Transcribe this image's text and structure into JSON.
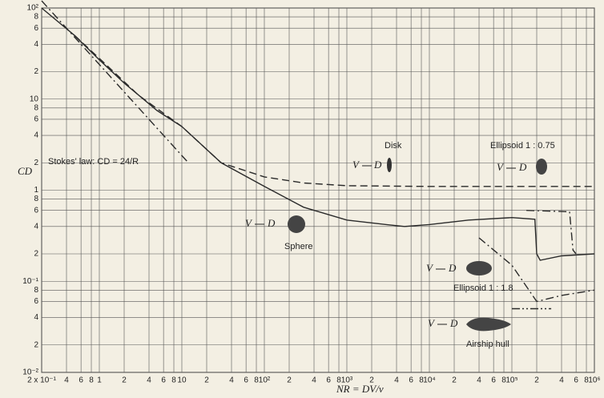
{
  "chart_data": {
    "type": "line",
    "x_label": "NR = DV/ν",
    "y_label": "CD",
    "log_x": true,
    "log_y": true,
    "grid": true,
    "xlim": [
      0.2,
      1000000
    ],
    "ylim": [
      0.01,
      100
    ],
    "xticks": [
      {
        "value": 0.2,
        "label": "2 x 10⁻¹"
      },
      {
        "value": 0.4,
        "label": "4"
      },
      {
        "value": 0.6,
        "label": "6"
      },
      {
        "value": 0.8,
        "label": "8"
      },
      1,
      2,
      4,
      6,
      8,
      10,
      {
        "value": 20,
        "label": "2"
      },
      {
        "value": 40,
        "label": "4"
      },
      {
        "value": 60,
        "label": "6"
      },
      {
        "value": 80,
        "label": "8"
      },
      {
        "value": 100,
        "label": "10²"
      },
      {
        "value": 200,
        "label": "2"
      },
      {
        "value": 400,
        "label": "4"
      },
      {
        "value": 600,
        "label": "6"
      },
      {
        "value": 800,
        "label": "8"
      },
      {
        "value": 1000,
        "label": "10³"
      },
      {
        "value": 2000,
        "label": "2"
      },
      {
        "value": 4000,
        "label": "4"
      },
      {
        "value": 6000,
        "label": "6"
      },
      {
        "value": 8000,
        "label": "8"
      },
      {
        "value": 10000,
        "label": "10⁴"
      },
      {
        "value": 20000,
        "label": "2"
      },
      {
        "value": 40000,
        "label": "4"
      },
      {
        "value": 60000,
        "label": "6"
      },
      {
        "value": 80000,
        "label": "8"
      },
      {
        "value": 100000,
        "label": "10⁵"
      },
      {
        "value": 200000,
        "label": "2"
      },
      {
        "value": 400000,
        "label": "4"
      },
      {
        "value": 600000,
        "label": "6"
      },
      {
        "value": 800000,
        "label": "8"
      },
      {
        "value": 1000000,
        "label": "10⁶"
      }
    ],
    "yticks": [
      {
        "value": 0.01,
        "label": "10⁻²"
      },
      {
        "value": 0.02,
        "label": "2"
      },
      {
        "value": 0.04,
        "label": "4"
      },
      {
        "value": 0.06,
        "label": "6"
      },
      {
        "value": 0.08,
        "label": "8"
      },
      {
        "value": 0.1,
        "label": "10⁻¹"
      },
      {
        "value": 0.2,
        "label": "2"
      },
      {
        "value": 0.4,
        "label": "4"
      },
      {
        "value": 0.6,
        "label": "6"
      },
      {
        "value": 0.8,
        "label": "8"
      },
      1,
      2,
      4,
      6,
      8,
      10,
      {
        "value": 20,
        "label": "2"
      },
      {
        "value": 40,
        "label": "4"
      },
      {
        "value": 60,
        "label": "6"
      },
      {
        "value": 80,
        "label": "8"
      },
      {
        "value": 100,
        "label": "10²"
      }
    ],
    "series": [
      {
        "name": "Sphere",
        "color": "#2a2a2a",
        "line_style": "solid",
        "x": [
          0.2,
          0.5,
          1,
          2,
          5,
          10,
          30,
          100,
          300,
          1000,
          3000,
          5000,
          10000,
          30000,
          100000,
          190000,
          200000,
          220000,
          400000,
          1000000
        ],
        "values": [
          100,
          50,
          27,
          15,
          7.5,
          5,
          2,
          1.1,
          0.65,
          0.47,
          0.42,
          0.4,
          0.42,
          0.47,
          0.5,
          0.48,
          0.2,
          0.17,
          0.19,
          0.2
        ]
      },
      {
        "name": "Disk",
        "color": "#2a2a2a",
        "line_style": "dashed",
        "x": [
          0.5,
          1,
          3,
          10,
          30,
          100,
          300,
          1000,
          10000,
          1000000
        ],
        "values": [
          50,
          28,
          11,
          5,
          2,
          1.4,
          1.2,
          1.12,
          1.1,
          1.1
        ]
      },
      {
        "name": "Stokes' law: CD = 24/R",
        "color": "#2a2a2a",
        "line_style": "dashdot",
        "x": [
          0.2,
          12
        ],
        "values": [
          120,
          2
        ]
      },
      {
        "name": "Ellipsoid 1 : 0.75",
        "color": "#2a2a2a",
        "line_style": "dashdot",
        "x": [
          150000,
          500000,
          550000,
          600000
        ],
        "values": [
          0.6,
          0.58,
          0.22,
          0.2
        ]
      },
      {
        "name": "Ellipsoid 1 : 1.8",
        "color": "#2a2a2a",
        "line_style": "dashdot",
        "x": [
          40000,
          100000,
          200000,
          400000,
          1000000
        ],
        "values": [
          0.3,
          0.15,
          0.06,
          0.07,
          0.08
        ]
      },
      {
        "name": "Airship hull",
        "color": "#2a2a2a",
        "line_style": "dashdotdot",
        "x": [
          100000,
          300000
        ],
        "values": [
          0.05,
          0.05
        ]
      }
    ],
    "diagram_labels": {
      "velocity": "V",
      "diameter": "D"
    }
  }
}
